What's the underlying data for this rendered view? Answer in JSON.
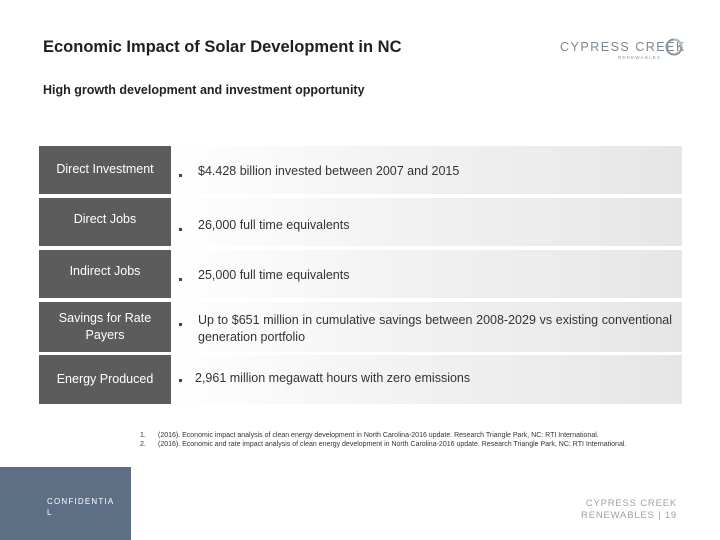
{
  "header": {
    "title": "Economic Impact of Solar Development in NC",
    "subtitle": "High growth development and investment opportunity"
  },
  "logo": {
    "name": "CYPRESS CREEK",
    "tagline": "RENEWABLES"
  },
  "rows": [
    {
      "label": "Direct Investment",
      "text": "$4.428 billion invested between 2007 and 2015"
    },
    {
      "label": "Direct Jobs",
      "text": "26,000 full time equivalents"
    },
    {
      "label": "Indirect Jobs",
      "text": "25,000 full time equivalents"
    },
    {
      "label": "Savings for Rate Payers",
      "text": "Up to $651 million in cumulative savings between 2008-2029 vs existing conventional generation portfolio"
    },
    {
      "label": "Energy Produced",
      "text": "2,961 million megawatt hours with zero emissions"
    }
  ],
  "footnotes": [
    {
      "num": "1.",
      "text": "(2016). Economic impact analysis of clean energy development in North Carolina-2016 update. Research Triangle Park, NC: RTI International."
    },
    {
      "num": "2.",
      "text": "(2016). Economic and rate impact analysis of clean energy development in North Carolina-2016 update. Research Triangle Park, NC: RTI International."
    }
  ],
  "confidential": "CONFIDENTIAL",
  "footer": {
    "brand": "CYPRESS CREEK",
    "line2": "RENEWABLES | 19"
  },
  "colors": {
    "label_bg": "#5c5c5c",
    "confidential_bg": "#5c6f85",
    "logo_grey": "#7d8892"
  }
}
